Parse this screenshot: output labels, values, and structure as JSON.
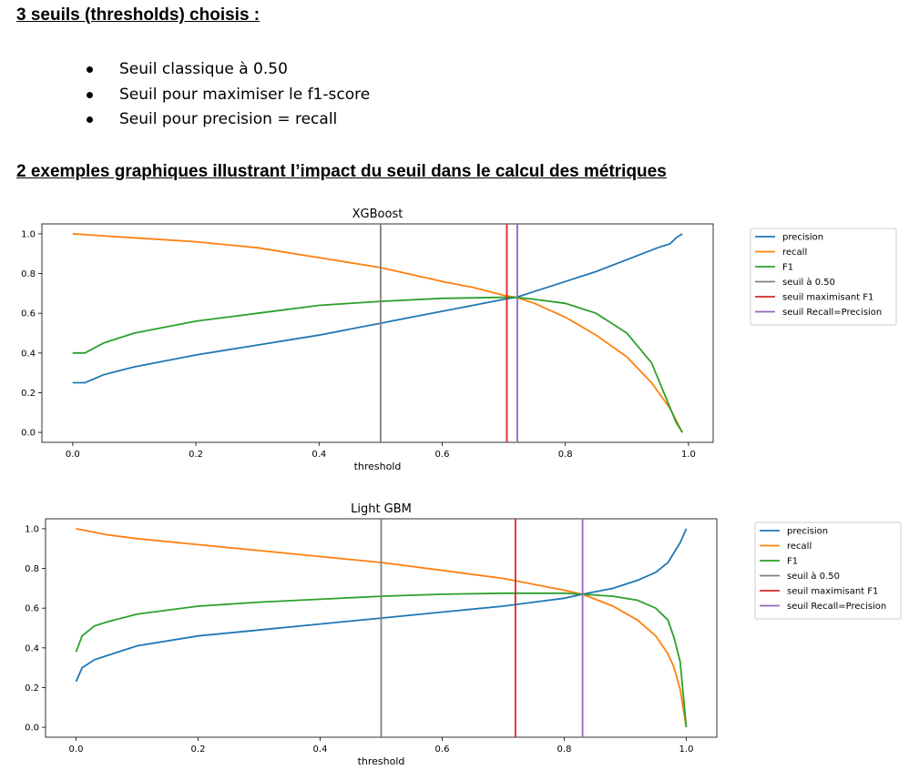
{
  "headings": {
    "thresholds": "3 seuils (thresholds) choisis :",
    "examples": "2 exemples graphiques illustrant l’impact du seuil dans le calcul des métriques"
  },
  "bullets": [
    "Seuil classique à 0.50",
    "Seuil pour maximiser le f1-score",
    "Seuil pour precision = recall"
  ],
  "colors": {
    "precision": "#1f77b4",
    "recall": "#ff7f0e",
    "f1": "#2ca02c",
    "seuil_050": "#7f7f7f",
    "seuil_f1": "#d62728",
    "seuil_rp": "#9467bd"
  },
  "chart_data": [
    {
      "type": "line",
      "title": "XGBoost",
      "xlabel": "threshold",
      "ylabel": "",
      "xlim": [
        -0.05,
        1.04
      ],
      "ylim": [
        -0.05,
        1.05
      ],
      "xticks": [
        "0.0",
        "0.2",
        "0.4",
        "0.6",
        "0.8",
        "1.0"
      ],
      "yticks": [
        "0.0",
        "0.2",
        "0.4",
        "0.6",
        "0.8",
        "1.0"
      ],
      "grid": false,
      "legend_position": "outside-right",
      "series": [
        {
          "name": "precision",
          "x": [
            0.0,
            0.02,
            0.05,
            0.1,
            0.2,
            0.3,
            0.4,
            0.5,
            0.55,
            0.6,
            0.65,
            0.7,
            0.72,
            0.75,
            0.8,
            0.85,
            0.9,
            0.95,
            0.97,
            0.98,
            0.99
          ],
          "y": [
            0.25,
            0.25,
            0.29,
            0.33,
            0.39,
            0.44,
            0.49,
            0.55,
            0.58,
            0.61,
            0.64,
            0.67,
            0.68,
            0.71,
            0.76,
            0.81,
            0.87,
            0.93,
            0.95,
            0.98,
            1.0
          ]
        },
        {
          "name": "recall",
          "x": [
            0.0,
            0.05,
            0.1,
            0.2,
            0.3,
            0.4,
            0.5,
            0.6,
            0.65,
            0.7,
            0.72,
            0.75,
            0.8,
            0.85,
            0.9,
            0.94,
            0.97,
            0.99
          ],
          "y": [
            1.0,
            0.99,
            0.98,
            0.96,
            0.93,
            0.88,
            0.83,
            0.76,
            0.73,
            0.69,
            0.68,
            0.65,
            0.58,
            0.49,
            0.38,
            0.25,
            0.12,
            0.0
          ]
        },
        {
          "name": "F1",
          "x": [
            0.0,
            0.02,
            0.05,
            0.1,
            0.2,
            0.3,
            0.4,
            0.5,
            0.6,
            0.7,
            0.72,
            0.75,
            0.8,
            0.85,
            0.9,
            0.94,
            0.96,
            0.98,
            0.99
          ],
          "y": [
            0.4,
            0.4,
            0.45,
            0.5,
            0.56,
            0.6,
            0.64,
            0.66,
            0.675,
            0.68,
            0.68,
            0.67,
            0.65,
            0.6,
            0.5,
            0.35,
            0.2,
            0.05,
            0.0
          ]
        }
      ],
      "vlines": [
        {
          "name": "seuil à 0.50",
          "x": 0.5
        },
        {
          "name": "seuil maximisant F1",
          "x": 0.705
        },
        {
          "name": "seuil Recall=Precision",
          "x": 0.722
        }
      ]
    },
    {
      "type": "line",
      "title": "Light GBM",
      "xlabel": "threshold",
      "ylabel": "",
      "xlim": [
        -0.05,
        1.05
      ],
      "ylim": [
        -0.05,
        1.05
      ],
      "xticks": [
        "0.0",
        "0.2",
        "0.4",
        "0.6",
        "0.8",
        "1.0"
      ],
      "yticks": [
        "0.0",
        "0.2",
        "0.4",
        "0.6",
        "0.8",
        "1.0"
      ],
      "grid": false,
      "legend_position": "outside-right",
      "series": [
        {
          "name": "precision",
          "x": [
            0.0,
            0.01,
            0.03,
            0.05,
            0.1,
            0.2,
            0.3,
            0.4,
            0.5,
            0.6,
            0.7,
            0.75,
            0.8,
            0.83,
            0.88,
            0.92,
            0.95,
            0.97,
            0.98,
            0.99,
            1.0
          ],
          "y": [
            0.23,
            0.3,
            0.34,
            0.36,
            0.41,
            0.46,
            0.49,
            0.52,
            0.55,
            0.58,
            0.61,
            0.63,
            0.65,
            0.67,
            0.7,
            0.74,
            0.78,
            0.83,
            0.88,
            0.93,
            1.0
          ]
        },
        {
          "name": "recall",
          "x": [
            0.0,
            0.05,
            0.1,
            0.2,
            0.3,
            0.4,
            0.5,
            0.6,
            0.7,
            0.75,
            0.8,
            0.83,
            0.88,
            0.92,
            0.95,
            0.97,
            0.98,
            0.99,
            1.0
          ],
          "y": [
            1.0,
            0.97,
            0.95,
            0.92,
            0.89,
            0.86,
            0.83,
            0.79,
            0.75,
            0.72,
            0.69,
            0.67,
            0.61,
            0.54,
            0.46,
            0.37,
            0.3,
            0.19,
            0.0
          ]
        },
        {
          "name": "F1",
          "x": [
            0.0,
            0.01,
            0.03,
            0.05,
            0.1,
            0.2,
            0.3,
            0.4,
            0.5,
            0.6,
            0.7,
            0.8,
            0.83,
            0.88,
            0.92,
            0.95,
            0.97,
            0.98,
            0.99,
            1.0
          ],
          "y": [
            0.38,
            0.46,
            0.51,
            0.53,
            0.57,
            0.61,
            0.63,
            0.645,
            0.66,
            0.67,
            0.675,
            0.675,
            0.67,
            0.66,
            0.64,
            0.6,
            0.54,
            0.45,
            0.33,
            0.0
          ]
        }
      ],
      "vlines": [
        {
          "name": "seuil à 0.50",
          "x": 0.5
        },
        {
          "name": "seuil maximisant F1",
          "x": 0.72
        },
        {
          "name": "seuil Recall=Precision",
          "x": 0.83
        }
      ]
    }
  ]
}
